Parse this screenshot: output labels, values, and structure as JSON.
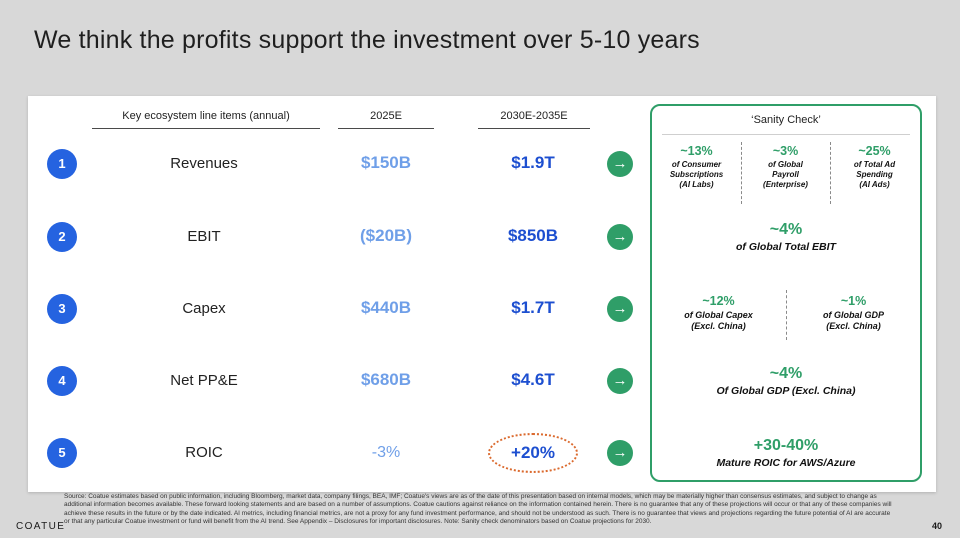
{
  "slide": {
    "title": "We think the profits support the investment over 5-10 years",
    "brand": "COATUE",
    "page_number": "40"
  },
  "table": {
    "headers": {
      "line_items": "Key ecosystem line items (annual)",
      "col_2025": "2025E",
      "col_2030": "2030E-2035E"
    },
    "arrow_icon": "→",
    "rows": [
      {
        "num": "1",
        "label": "Revenues",
        "v2025": "$150B",
        "v2030": "$1.9T"
      },
      {
        "num": "2",
        "label": "EBIT",
        "v2025": "($20B)",
        "v2030": "$850B"
      },
      {
        "num": "3",
        "label": "Capex",
        "v2025": "$440B",
        "v2030": "$1.7T"
      },
      {
        "num": "4",
        "label": "Net PP&E",
        "v2025": "$680B",
        "v2030": "$4.6T"
      },
      {
        "num": "5",
        "label": "ROIC",
        "v2025": "-3%",
        "v2030": "+20%"
      }
    ]
  },
  "sanity": {
    "title": "‘Sanity Check’",
    "row1": [
      {
        "value": "~13%",
        "sub": "of Consumer\nSubscriptions\n(AI Labs)"
      },
      {
        "value": "~3%",
        "sub": "of Global\nPayroll\n(Enterprise)"
      },
      {
        "value": "~25%",
        "sub": "of Total Ad\nSpending\n(AI Ads)"
      }
    ],
    "row2": {
      "value": "~4%",
      "label": "of Global Total EBIT"
    },
    "row3": [
      {
        "value": "~12%",
        "sub": "of Global Capex\n(Excl. China)"
      },
      {
        "value": "~1%",
        "sub": "of Global GDP\n(Excl. China)"
      }
    ],
    "row4": {
      "value": "~4%",
      "label": "Of Global GDP (Excl. China)"
    },
    "row5": {
      "value": "+30-40%",
      "label": "Mature ROIC for AWS/Azure"
    }
  },
  "footer": {
    "source": "Source: Coatue estimates based on public information, including Bloomberg, market data, company filings, BEA, IMF; Coatue's views are as of the date of this presentation based on internal models, which may be materially higher than consensus estimates, and subject to change as additional information becomes available. These forward looking statements and are based on a number of assumptions.  Coatue cautions against reliance on the information contained herein. There is no guarantee that any of these projections will occur or that any of these companies will achieve these results in the future or by the date indicated. AI metrics, including financial metrics, are not a proxy for any fund investment performance, and should not be understood as such. There is no guarantee that views and projections regarding the future potential of AI are accurate or that any particular Coatue investment or fund will benefit from the AI trend.  See Appendix – Disclosures for important disclosures.  Note: Sanity check denominators based on Coatue projections for 2030."
  },
  "colors": {
    "value_blue_2030": "#1d4fd0",
    "value_blue_2025": "#6f9fe8",
    "green_accent": "#2f9e68",
    "badge_blue": "#2563e0",
    "roic_highlight_orange": "#db6a2e"
  }
}
